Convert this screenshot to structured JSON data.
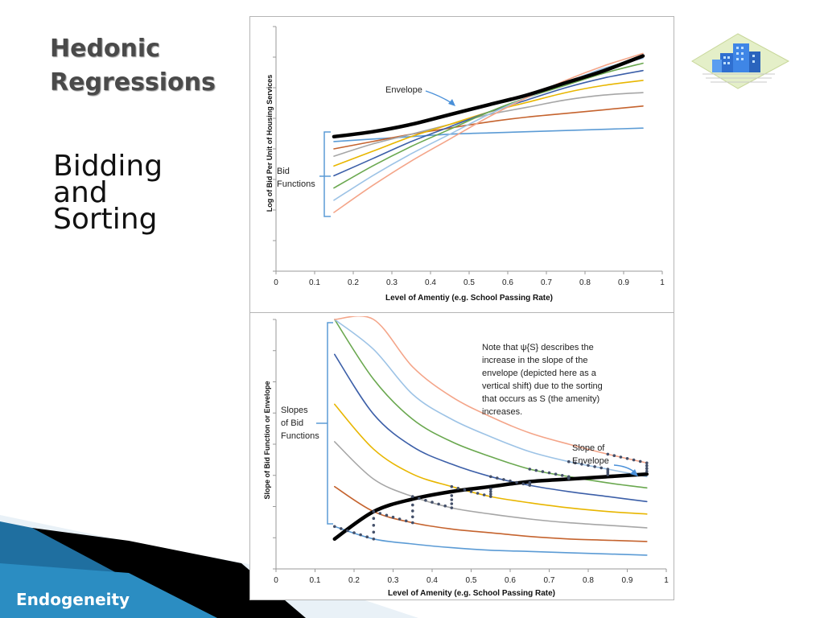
{
  "slide": {
    "title_line1": "Hedonic",
    "title_line2": "Regressions",
    "subtitle_lines": [
      "Bidding",
      "and",
      "Sorting"
    ],
    "footer": "Endogeneity"
  },
  "logo": {
    "icon": "city-buildings-icon"
  },
  "colors": {
    "curves": [
      "#5b9bd5",
      "#c5632e",
      "#a6a6a6",
      "#e8b600",
      "#3c5fa8",
      "#6aa84f",
      "#9dc3e6",
      "#f4a589"
    ],
    "envelope": "#000000",
    "brace": "#5b9bd5",
    "footer_band": "#1f6fa0"
  },
  "top_chart": {
    "xlabel": "Level of Amentiy (e.g. School Passing Rate)",
    "ylabel": "Log of Bid Per Unit of Housing Services",
    "xticks": [
      "0",
      "0.1",
      "0.2",
      "0.3",
      "0.4",
      "0.5",
      "0.6",
      "0.7",
      "0.8",
      "0.9",
      "1"
    ],
    "annotation_envelope": "Envelope",
    "bid_label_line1": "Bid",
    "bid_label_line2": "Functions"
  },
  "bottom_chart": {
    "xlabel": "Level of Amenity (e.g. School Passing Rate)",
    "ylabel": "Slope of Bid Function or Envelope",
    "xticks": [
      "0",
      "0.1",
      "0.2",
      "0.3",
      "0.4",
      "0.5",
      "0.6",
      "0.7",
      "0.8",
      "0.9",
      "1"
    ],
    "slopes_line1": "Slopes",
    "slopes_line2": "of Bid",
    "slopes_line3": "Functions",
    "slope_env_line1": "Slope of",
    "slope_env_line2": "Envelope",
    "note_lines": [
      "Note that ψ{S} describes the",
      "increase in the slope of the",
      "envelope (depicted here as a",
      "vertical shift) due to the sorting",
      "that occurs as S (the amenity)",
      "increases."
    ]
  },
  "chart_data": [
    {
      "type": "line",
      "xlabel": "Level of Amentiy (e.g. School Passing Rate)",
      "ylabel": "Log of Bid Per Unit of Housing Services",
      "xlim": [
        0,
        1
      ],
      "x": [
        0.15,
        0.25,
        0.35,
        0.45,
        0.55,
        0.65,
        0.75,
        0.85,
        0.95
      ],
      "series": [
        {
          "values": [
            0.53,
            0.54,
            0.55,
            0.56,
            0.565,
            0.57,
            0.575,
            0.58,
            0.585
          ]
        },
        {
          "values": [
            0.5,
            0.53,
            0.56,
            0.585,
            0.61,
            0.63,
            0.645,
            0.66,
            0.675
          ]
        },
        {
          "values": [
            0.47,
            0.52,
            0.56,
            0.6,
            0.64,
            0.67,
            0.7,
            0.72,
            0.73
          ]
        },
        {
          "values": [
            0.43,
            0.49,
            0.55,
            0.6,
            0.65,
            0.69,
            0.73,
            0.76,
            0.78
          ]
        },
        {
          "values": [
            0.39,
            0.46,
            0.53,
            0.59,
            0.65,
            0.7,
            0.75,
            0.79,
            0.82
          ]
        },
        {
          "values": [
            0.34,
            0.43,
            0.51,
            0.58,
            0.65,
            0.71,
            0.76,
            0.81,
            0.85
          ]
        },
        {
          "values": [
            0.29,
            0.39,
            0.48,
            0.56,
            0.64,
            0.71,
            0.77,
            0.83,
            0.87
          ]
        },
        {
          "values": [
            0.24,
            0.35,
            0.45,
            0.54,
            0.63,
            0.71,
            0.78,
            0.84,
            0.89
          ]
        },
        {
          "name": "Envelope",
          "values": [
            0.55,
            0.57,
            0.6,
            0.64,
            0.68,
            0.72,
            0.77,
            0.82,
            0.88
          ]
        }
      ]
    },
    {
      "type": "line",
      "xlabel": "Level of Amenity (e.g. School Passing Rate)",
      "ylabel": "Slope of Bid Function or Envelope",
      "xlim": [
        0,
        1
      ],
      "x": [
        0.15,
        0.25,
        0.35,
        0.45,
        0.55,
        0.65,
        0.75,
        0.85,
        0.95
      ],
      "series": [
        {
          "values": [
            0.17,
            0.12,
            0.1,
            0.085,
            0.075,
            0.07,
            0.065,
            0.06,
            0.055
          ]
        },
        {
          "values": [
            0.33,
            0.23,
            0.185,
            0.16,
            0.145,
            0.13,
            0.12,
            0.115,
            0.11
          ]
        },
        {
          "values": [
            0.51,
            0.36,
            0.29,
            0.245,
            0.22,
            0.2,
            0.185,
            0.175,
            0.165
          ]
        },
        {
          "values": [
            0.66,
            0.48,
            0.38,
            0.33,
            0.29,
            0.265,
            0.245,
            0.23,
            0.22
          ]
        },
        {
          "values": [
            0.86,
            0.62,
            0.49,
            0.42,
            0.37,
            0.335,
            0.31,
            0.29,
            0.27
          ]
        },
        {
          "values": [
            1.0,
            0.76,
            0.6,
            0.51,
            0.45,
            0.4,
            0.37,
            0.345,
            0.325
          ]
        },
        {
          "values": [
            1.0,
            0.88,
            0.7,
            0.6,
            0.53,
            0.47,
            0.43,
            0.4,
            0.37
          ]
        },
        {
          "values": [
            1.0,
            1.0,
            0.81,
            0.69,
            0.61,
            0.545,
            0.5,
            0.46,
            0.425
          ]
        },
        {
          "name": "Slope of Envelope",
          "values": [
            0.12,
            0.23,
            0.28,
            0.31,
            0.33,
            0.35,
            0.36,
            0.37,
            0.38
          ]
        }
      ]
    }
  ]
}
